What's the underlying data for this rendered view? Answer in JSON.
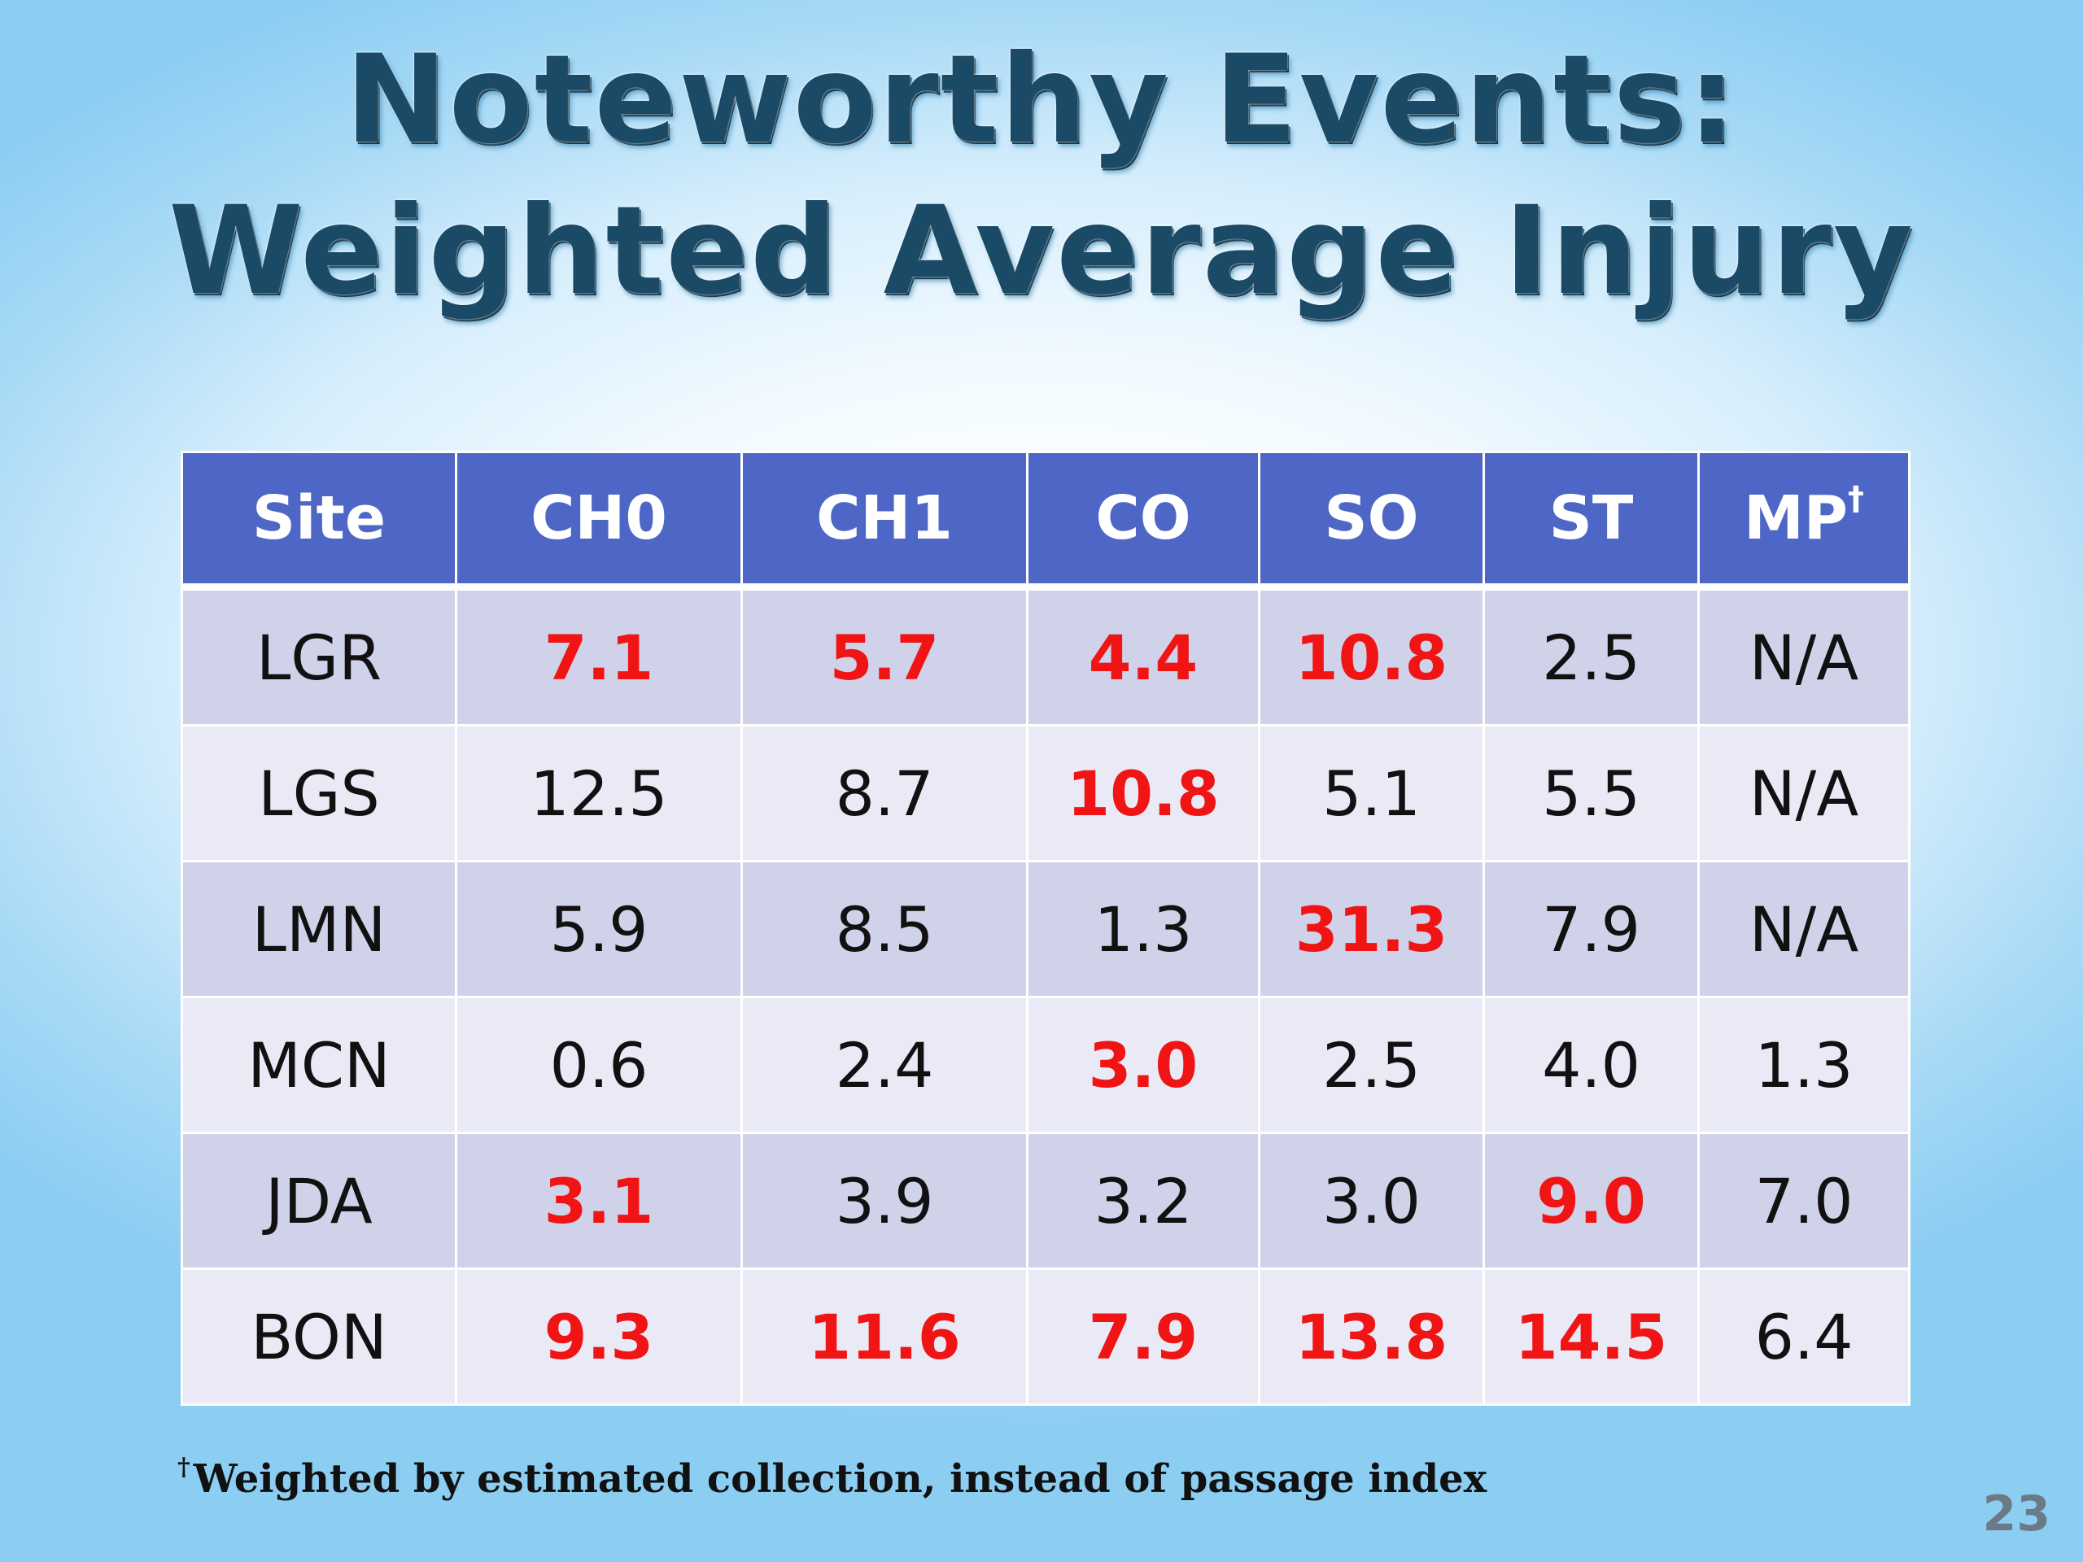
{
  "slide": {
    "title_line1": "Noteworthy Events:",
    "title_line2": "Weighted Average Injury",
    "footnote_mark": "†",
    "footnote_text": "Weighted by estimated collection, instead of passage index",
    "slide_number": "23"
  },
  "table": {
    "headers": [
      "Site",
      "CH0",
      "CH1",
      "CO",
      "SO",
      "ST",
      "MP"
    ],
    "header_mark": "†",
    "rows": [
      {
        "site": "LGR",
        "values": [
          "7.1",
          "5.7",
          "4.4",
          "10.8",
          "2.5",
          "N/A"
        ],
        "highlight": [
          true,
          true,
          true,
          true,
          false,
          false
        ]
      },
      {
        "site": "LGS",
        "values": [
          "12.5",
          "8.7",
          "10.8",
          "5.1",
          "5.5",
          "N/A"
        ],
        "highlight": [
          false,
          false,
          true,
          false,
          false,
          false
        ]
      },
      {
        "site": "LMN",
        "values": [
          "5.9",
          "8.5",
          "1.3",
          "31.3",
          "7.9",
          "N/A"
        ],
        "highlight": [
          false,
          false,
          false,
          true,
          false,
          false
        ]
      },
      {
        "site": "MCN",
        "values": [
          "0.6",
          "2.4",
          "3.0",
          "2.5",
          "4.0",
          "1.3"
        ],
        "highlight": [
          false,
          false,
          true,
          false,
          false,
          false
        ]
      },
      {
        "site": "JDA",
        "values": [
          "3.1",
          "3.9",
          "3.2",
          "3.0",
          "9.0",
          "7.0"
        ],
        "highlight": [
          true,
          false,
          false,
          false,
          true,
          false
        ]
      },
      {
        "site": "BON",
        "values": [
          "9.3",
          "11.6",
          "7.9",
          "13.8",
          "14.5",
          "6.4"
        ],
        "highlight": [
          true,
          true,
          true,
          true,
          true,
          false
        ]
      }
    ]
  },
  "colors": {
    "header_bg": "#4e67c6",
    "row_odd": "#d0d2ea",
    "row_even": "#e9eaf5",
    "highlight_text": "#f01414",
    "title_text": "#1a4a66"
  }
}
